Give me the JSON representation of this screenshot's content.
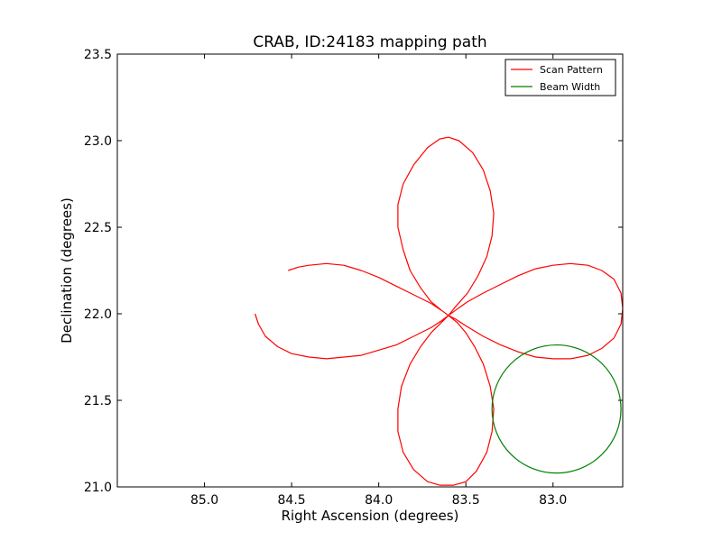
{
  "chart_data": {
    "type": "line",
    "title": "CRAB, ID:24183 mapping path",
    "xlabel": "Right Ascension (degrees)",
    "ylabel": "Declination (degrees)",
    "xlim": [
      85.5,
      82.6
    ],
    "ylim": [
      21.0,
      23.5
    ],
    "x_ticks": [
      85.0,
      84.5,
      84.0,
      83.5,
      83.0
    ],
    "x_tick_labels": [
      "85.0",
      "84.5",
      "84.0",
      "83.5",
      "83.0"
    ],
    "y_ticks": [
      21.0,
      21.5,
      22.0,
      22.5,
      23.0,
      23.5
    ],
    "y_tick_labels": [
      "21.0",
      "21.5",
      "22.0",
      "22.5",
      "23.0",
      "23.5"
    ],
    "legend_position": "top-right",
    "grid": false,
    "series": [
      {
        "name": "Scan Pattern",
        "color": "#ff0000",
        "points": [
          [
            84.52,
            22.25
          ],
          [
            84.46,
            22.27
          ],
          [
            84.4,
            22.28
          ],
          [
            84.3,
            22.29
          ],
          [
            84.2,
            22.28
          ],
          [
            84.1,
            22.25
          ],
          [
            84.0,
            22.21
          ],
          [
            83.9,
            22.16
          ],
          [
            83.8,
            22.11
          ],
          [
            83.7,
            22.06
          ],
          [
            83.64,
            22.02
          ],
          [
            83.6,
            21.99
          ],
          [
            83.55,
            21.95
          ],
          [
            83.5,
            21.89
          ],
          [
            83.45,
            21.81
          ],
          [
            83.4,
            21.71
          ],
          [
            83.36,
            21.58
          ],
          [
            83.34,
            21.45
          ],
          [
            83.35,
            21.32
          ],
          [
            83.38,
            21.2
          ],
          [
            83.44,
            21.09
          ],
          [
            83.5,
            21.03
          ],
          [
            83.57,
            21.01
          ],
          [
            83.65,
            21.01
          ],
          [
            83.72,
            21.03
          ],
          [
            83.8,
            21.1
          ],
          [
            83.86,
            21.2
          ],
          [
            83.89,
            21.32
          ],
          [
            83.89,
            21.45
          ],
          [
            83.87,
            21.58
          ],
          [
            83.82,
            21.71
          ],
          [
            83.76,
            21.81
          ],
          [
            83.7,
            21.89
          ],
          [
            83.64,
            21.95
          ],
          [
            83.6,
            21.99
          ],
          [
            83.56,
            22.02
          ],
          [
            83.49,
            22.07
          ],
          [
            83.4,
            22.12
          ],
          [
            83.3,
            22.17
          ],
          [
            83.2,
            22.22
          ],
          [
            83.1,
            22.26
          ],
          [
            83.0,
            22.28
          ],
          [
            82.9,
            22.29
          ],
          [
            82.8,
            22.28
          ],
          [
            82.72,
            22.25
          ],
          [
            82.65,
            22.2
          ],
          [
            82.61,
            22.12
          ],
          [
            82.6,
            22.03
          ],
          [
            82.61,
            21.94
          ],
          [
            82.65,
            21.86
          ],
          [
            82.72,
            21.8
          ],
          [
            82.8,
            21.76
          ],
          [
            82.9,
            21.74
          ],
          [
            83.0,
            21.74
          ],
          [
            83.1,
            21.75
          ],
          [
            83.2,
            21.78
          ],
          [
            83.3,
            21.82
          ],
          [
            83.4,
            21.87
          ],
          [
            83.5,
            21.93
          ],
          [
            83.56,
            21.97
          ],
          [
            83.6,
            21.99
          ],
          [
            83.64,
            22.02
          ],
          [
            83.7,
            22.07
          ],
          [
            83.76,
            22.15
          ],
          [
            83.82,
            22.25
          ],
          [
            83.86,
            22.37
          ],
          [
            83.89,
            22.5
          ],
          [
            83.89,
            22.63
          ],
          [
            83.86,
            22.75
          ],
          [
            83.8,
            22.86
          ],
          [
            83.72,
            22.96
          ],
          [
            83.65,
            23.01
          ],
          [
            83.6,
            23.02
          ],
          [
            83.54,
            23.0
          ],
          [
            83.46,
            22.93
          ],
          [
            83.4,
            22.83
          ],
          [
            83.36,
            22.71
          ],
          [
            83.34,
            22.58
          ],
          [
            83.35,
            22.45
          ],
          [
            83.38,
            22.33
          ],
          [
            83.43,
            22.22
          ],
          [
            83.49,
            22.12
          ],
          [
            83.56,
            22.04
          ],
          [
            83.6,
            21.99
          ],
          [
            83.64,
            21.96
          ],
          [
            83.7,
            21.92
          ],
          [
            83.8,
            21.87
          ],
          [
            83.9,
            21.82
          ],
          [
            84.0,
            21.79
          ],
          [
            84.1,
            21.76
          ],
          [
            84.2,
            21.75
          ],
          [
            84.3,
            21.74
          ],
          [
            84.4,
            21.75
          ],
          [
            84.5,
            21.77
          ],
          [
            84.58,
            21.81
          ],
          [
            84.65,
            21.87
          ],
          [
            84.69,
            21.94
          ],
          [
            84.71,
            22.0
          ]
        ]
      },
      {
        "name": "Beam Width",
        "color": "#008000",
        "circle": {
          "center": [
            82.98,
            21.45
          ],
          "radius_deg": 0.37
        }
      }
    ]
  }
}
